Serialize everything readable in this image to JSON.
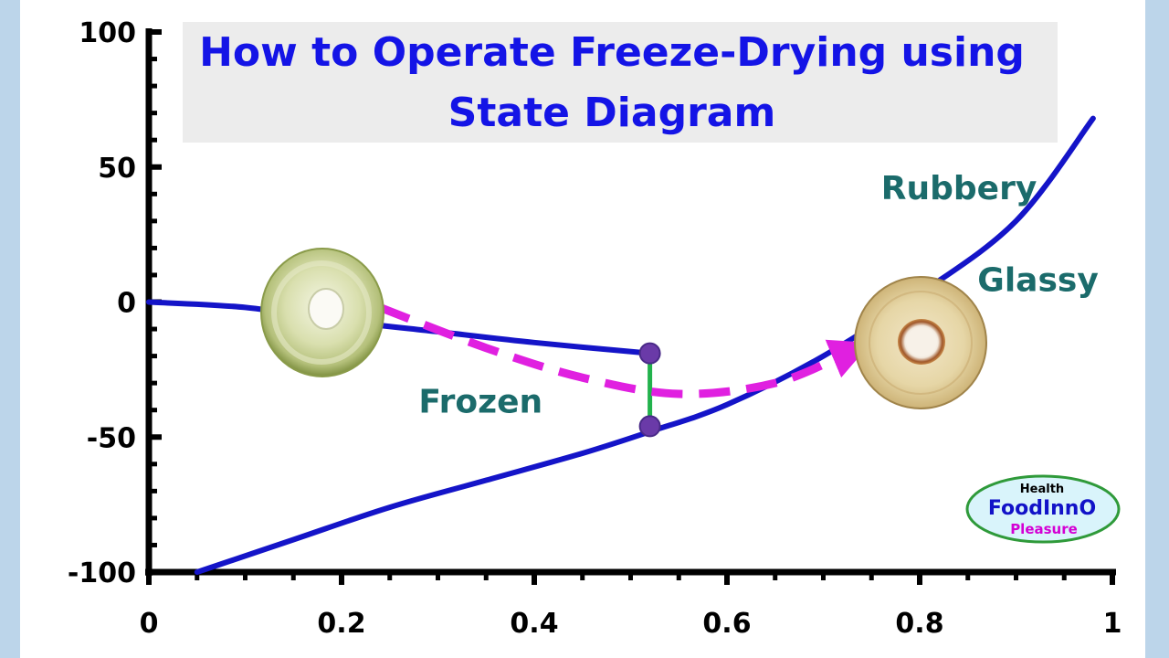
{
  "chart_data": {
    "type": "line",
    "title": "How to Operate Freeze-Drying using State Diagram",
    "title_lines": [
      "How to Operate Freeze-Drying using",
      "State Diagram"
    ],
    "xlabel": "",
    "ylabel": "",
    "xlim": [
      0,
      1
    ],
    "ylim": [
      -100,
      100
    ],
    "x_ticks": [
      0,
      0.2,
      0.4,
      0.6,
      0.8,
      1
    ],
    "x_tick_labels": [
      "0",
      "0.2",
      "0.4",
      "0.6",
      "0.8",
      "1"
    ],
    "y_ticks": [
      -100,
      -50,
      0,
      50,
      100
    ],
    "y_tick_labels": [
      "-100",
      "-50",
      "0",
      "50",
      "100"
    ],
    "grid": false,
    "series": [
      {
        "color": "#1414c8",
        "x": [
          0,
          0.1,
          0.2,
          0.3,
          0.4,
          0.52
        ],
        "y": [
          0,
          -2,
          -7,
          -11,
          -15,
          -19
        ]
      },
      {
        "color": "#1414c8",
        "x": [
          0.05,
          0.15,
          0.25,
          0.35,
          0.45,
          0.52,
          0.6,
          0.7,
          0.8,
          0.9,
          0.98
        ],
        "y": [
          -100,
          -88,
          -76,
          -66,
          -56,
          -48,
          -38,
          -20,
          3,
          30,
          68
        ]
      }
    ],
    "annotations": [
      {
        "text": "Rubbery",
        "x": 0.76,
        "y": 38,
        "color": "#1b6b6b"
      },
      {
        "text": "Glassy",
        "x": 0.86,
        "y": 4,
        "color": "#1b6b6b"
      },
      {
        "text": "Frozen",
        "x": 0.28,
        "y": -41,
        "color": "#1b6b6b"
      }
    ],
    "process_path": {
      "color": "#e020e0",
      "x": [
        0.24,
        0.35,
        0.45,
        0.55,
        0.65,
        0.73
      ],
      "y": [
        -2,
        -17,
        -28,
        -34,
        -30,
        -18
      ]
    },
    "connector": {
      "color": "#22b24c",
      "x": 0.52,
      "y_top": -19,
      "y_bottom": -46
    }
  },
  "logo": {
    "top": "Health",
    "middle": "FoodInnO",
    "bottom": "Pleasure"
  },
  "images": {
    "fresh_slice": "fresh-apple-slice-icon",
    "dried_slice": "dried-apple-slice-icon"
  }
}
